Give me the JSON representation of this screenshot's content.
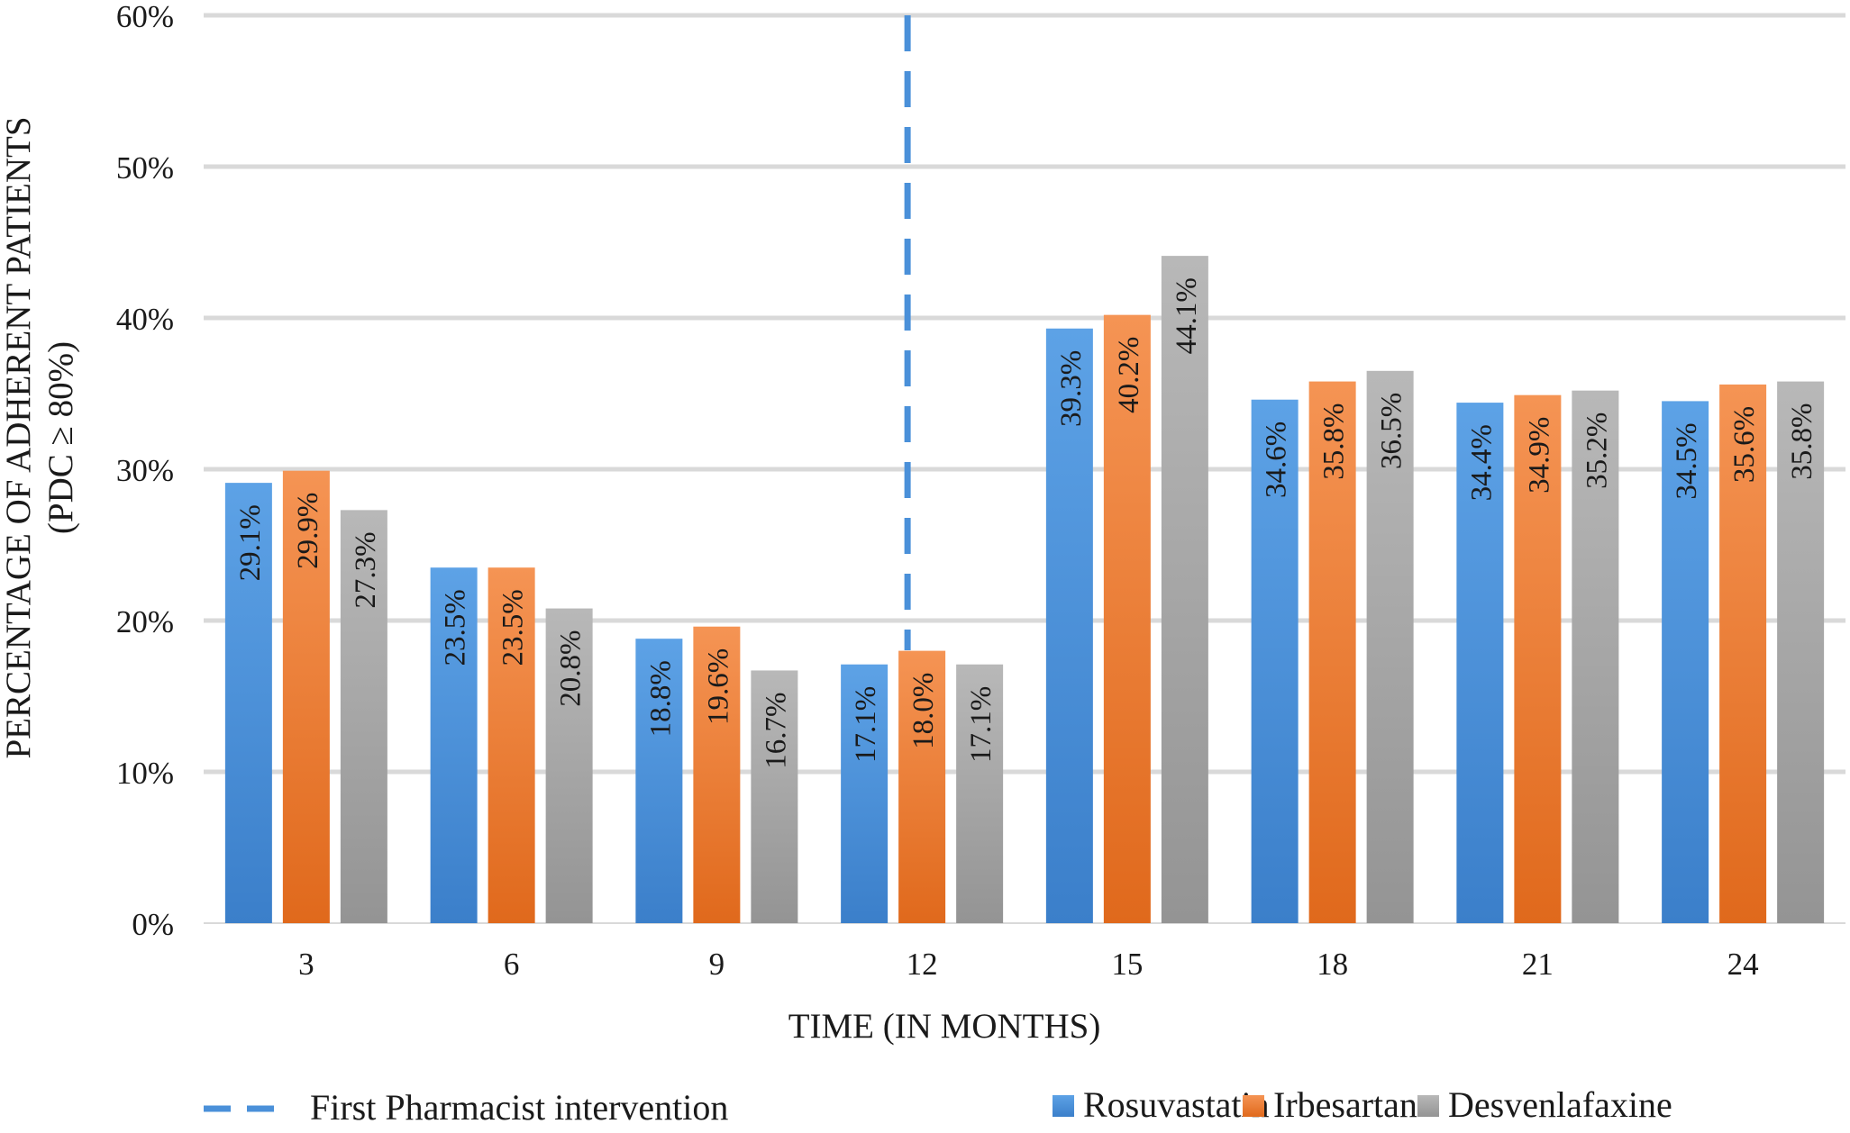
{
  "chart_data": {
    "type": "bar",
    "title": "",
    "xlabel": "TIME (IN MONTHS)",
    "ylabel_line1": "PERCENTAGE OF ADHERENT PATIENTS",
    "ylabel_line2": "(PDC ≥ 80%)",
    "ylim": [
      0,
      60
    ],
    "yticks": [
      "0%",
      "10%",
      "20%",
      "30%",
      "40%",
      "50%",
      "60%"
    ],
    "ytick_values": [
      0,
      10,
      20,
      30,
      40,
      50,
      60
    ],
    "categories": [
      "3",
      "6",
      "9",
      "12",
      "15",
      "18",
      "21",
      "24"
    ],
    "series": [
      {
        "name": "Rosuvastatin",
        "color": "#4a90d9",
        "color_top": "#5da2e6",
        "color_bottom": "#3b7fca",
        "values": [
          29.1,
          23.5,
          18.8,
          17.1,
          39.3,
          34.6,
          34.4,
          34.5
        ],
        "labels": [
          "29.1%",
          "23.5%",
          "18.8%",
          "17.1%",
          "39.3%",
          "34.6%",
          "34.4%",
          "34.5%"
        ]
      },
      {
        "name": "Irbesartan",
        "color": "#ed7d31",
        "color_top": "#f59454",
        "color_bottom": "#e0691c",
        "values": [
          29.9,
          23.5,
          19.6,
          18.0,
          40.2,
          35.8,
          34.9,
          35.6
        ],
        "labels": [
          "29.9%",
          "23.5%",
          "19.6%",
          "18.0%",
          "40.2%",
          "35.8%",
          "34.9%",
          "35.6%"
        ]
      },
      {
        "name": "Desvenlafaxine",
        "color": "#a5a5a5",
        "color_top": "#b8b8b8",
        "color_bottom": "#949494",
        "values": [
          27.3,
          20.8,
          16.7,
          17.1,
          44.1,
          36.5,
          35.2,
          35.8
        ],
        "labels": [
          "27.3%",
          "20.8%",
          "16.7%",
          "17.1%",
          "44.1%",
          "36.5%",
          "35.2%",
          "35.8%"
        ]
      }
    ],
    "annotation": {
      "label": "First Pharmacist intervention",
      "at_category": "12",
      "style": "dashed",
      "color": "#4a90d9"
    },
    "grid": true,
    "legend_position": "bottom"
  }
}
